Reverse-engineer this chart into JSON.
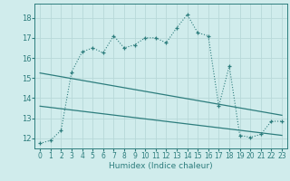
{
  "title": "",
  "xlabel": "Humidex (Indice chaleur)",
  "bg_color": "#d0ecec",
  "grid_color": "#b8d8d8",
  "line_color": "#2d7d7d",
  "xlim": [
    -0.5,
    23.5
  ],
  "ylim": [
    11.5,
    18.7
  ],
  "yticks": [
    12,
    13,
    14,
    15,
    16,
    17,
    18
  ],
  "xticks": [
    0,
    1,
    2,
    3,
    4,
    5,
    6,
    7,
    8,
    9,
    10,
    11,
    12,
    13,
    14,
    15,
    16,
    17,
    18,
    19,
    20,
    21,
    22,
    23
  ],
  "series1_x": [
    0,
    1,
    2,
    3,
    4,
    5,
    6,
    7,
    8,
    9,
    10,
    11,
    12,
    13,
    14,
    15,
    16,
    17,
    18,
    19,
    20,
    21,
    22,
    23
  ],
  "series1_y": [
    11.75,
    11.9,
    12.4,
    15.3,
    16.3,
    16.5,
    16.25,
    17.1,
    16.5,
    16.65,
    17.0,
    17.0,
    16.75,
    17.5,
    18.15,
    17.25,
    17.1,
    13.6,
    15.6,
    12.15,
    12.05,
    12.2,
    12.85,
    12.85
  ],
  "series2_x": [
    0,
    23
  ],
  "series2_y": [
    15.25,
    13.15
  ],
  "series3_x": [
    0,
    23
  ],
  "series3_y": [
    13.6,
    12.15
  ]
}
